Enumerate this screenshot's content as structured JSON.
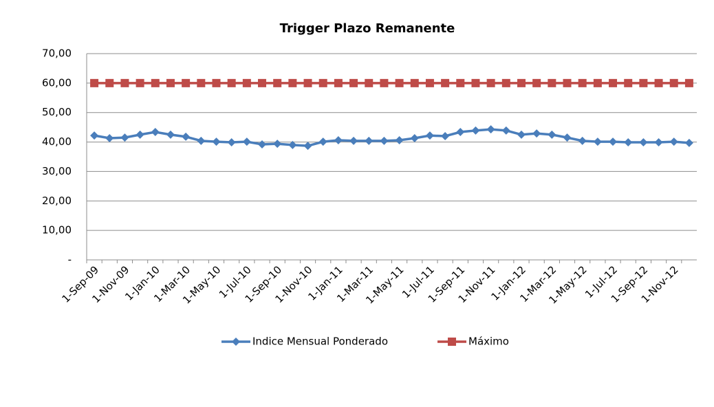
{
  "chart_data": {
    "type": "line",
    "title": "Trigger Plazo Remanente",
    "categories": [
      "1-Sep-09",
      null,
      "1-Nov-09",
      null,
      "1-Jan-10",
      null,
      "1-Mar-10",
      null,
      "1-May-10",
      null,
      "1-Jul-10",
      null,
      "1-Sep-10",
      null,
      "1-Nov-10",
      null,
      "1-Jan-11",
      null,
      "1-Mar-11",
      null,
      "1-May-11",
      null,
      "1-Jul-11",
      null,
      "1-Sep-11",
      null,
      "1-Nov-11",
      null,
      "1-Jan-12",
      null,
      "1-Mar-12",
      null,
      "1-May-12",
      null,
      "1-Jul-12",
      null,
      "1-Sep-12",
      null,
      "1-Nov-12",
      null
    ],
    "series": [
      {
        "name": "Indice Mensual Ponderado",
        "color": "#4a7ebb",
        "values": [
          42.2,
          41.3,
          41.5,
          42.5,
          43.4,
          42.5,
          41.8,
          40.4,
          40.1,
          39.9,
          40.1,
          39.2,
          39.4,
          39.0,
          38.7,
          40.1,
          40.6,
          40.4,
          40.4,
          40.4,
          40.6,
          41.3,
          42.2,
          42.0,
          43.4,
          43.9,
          44.3,
          43.9,
          42.5,
          42.9,
          42.5,
          41.5,
          40.4,
          40.1,
          40.1,
          39.9,
          39.9,
          39.9,
          40.1,
          39.7
        ]
      },
      {
        "name": "Máximo",
        "color": "#be4b48",
        "values": [
          60,
          60,
          60,
          60,
          60,
          60,
          60,
          60,
          60,
          60,
          60,
          60,
          60,
          60,
          60,
          60,
          60,
          60,
          60,
          60,
          60,
          60,
          60,
          60,
          60,
          60,
          60,
          60,
          60,
          60,
          60,
          60,
          60,
          60,
          60,
          60,
          60,
          60,
          60,
          60
        ]
      }
    ],
    "ylim": [
      0,
      70
    ],
    "yticks": [
      {
        "value": 0,
        "label": "-"
      },
      {
        "value": 10,
        "label": "10,00"
      },
      {
        "value": 20,
        "label": "20,00"
      },
      {
        "value": 30,
        "label": "30,00"
      },
      {
        "value": 40,
        "label": "40,00"
      },
      {
        "value": 50,
        "label": "50,00"
      },
      {
        "value": 60,
        "label": "60,00"
      },
      {
        "value": 70,
        "label": "70,00"
      }
    ],
    "grid": true,
    "legend": "bottom"
  }
}
